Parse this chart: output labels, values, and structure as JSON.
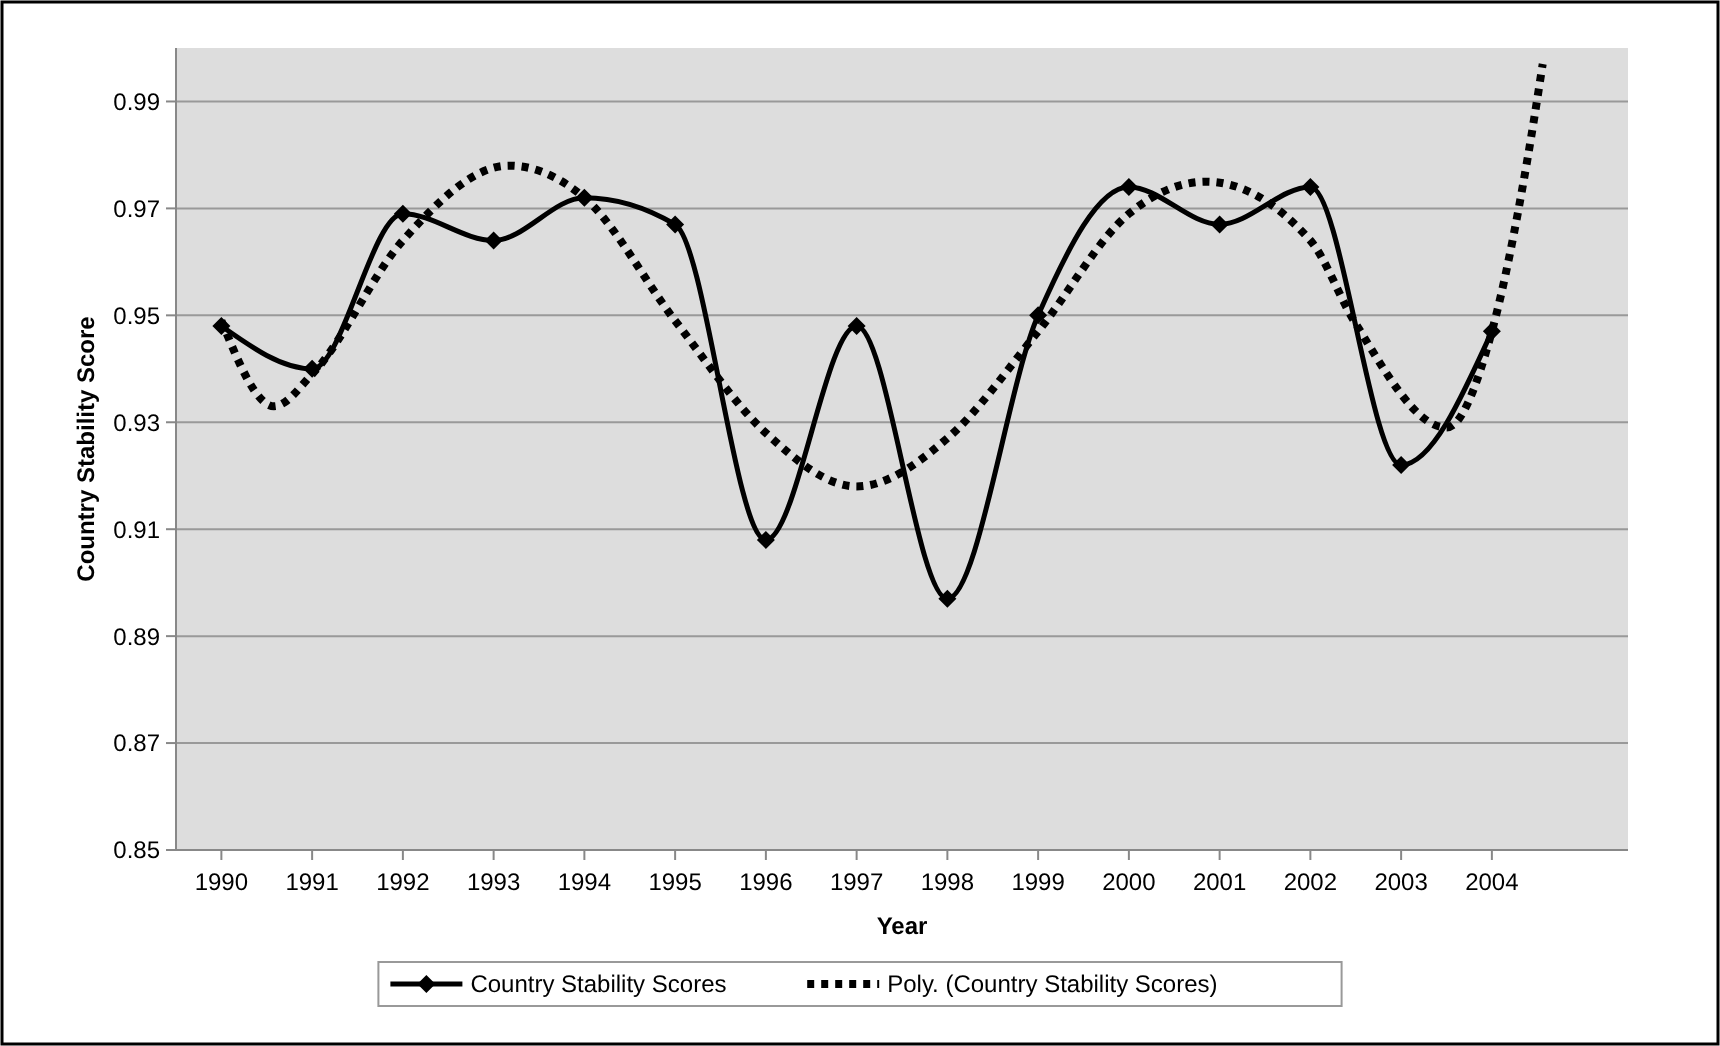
{
  "chart_data": {
    "type": "line",
    "xlabel": "Year",
    "ylabel": "Country Stability Score",
    "x": [
      1990,
      1991,
      1992,
      1993,
      1994,
      1995,
      1996,
      1997,
      1998,
      1999,
      2000,
      2001,
      2002,
      2003,
      2004
    ],
    "series": [
      {
        "name": "Country Stability Scores",
        "color": "#000000",
        "marker": "diamond",
        "line_style": "solid",
        "values": [
          0.948,
          0.94,
          0.969,
          0.964,
          0.972,
          0.967,
          0.908,
          0.948,
          0.897,
          0.95,
          0.974,
          0.967,
          0.974,
          0.922,
          0.947
        ]
      },
      {
        "name": "Poly. (Country Stability Scores)",
        "color": "#000000",
        "marker": "none",
        "line_style": "dotted",
        "x": [
          1990,
          1990.58,
          1991,
          1992,
          1993.17,
          1994,
          1995,
          1996,
          1997,
          1998,
          1999,
          2000,
          2000.85,
          2002,
          2002.48,
          2003.5,
          2004,
          2004.39,
          2004.56
        ],
        "values": [
          0.949,
          0.933,
          0.939,
          0.964,
          0.978,
          0.972,
          0.949,
          0.928,
          0.918,
          0.927,
          0.947,
          0.969,
          0.975,
          0.964,
          0.949,
          0.929,
          0.947,
          0.979,
          0.997
        ]
      }
    ],
    "xlim": [
      1989.5,
      2005.5
    ],
    "xticks": [
      {
        "value": 1990,
        "label": "1990"
      },
      {
        "value": 1991,
        "label": "1991"
      },
      {
        "value": 1992,
        "label": "1992"
      },
      {
        "value": 1993,
        "label": "1993"
      },
      {
        "value": 1994,
        "label": "1994"
      },
      {
        "value": 1995,
        "label": "1995"
      },
      {
        "value": 1996,
        "label": "1996"
      },
      {
        "value": 1997,
        "label": "1997"
      },
      {
        "value": 1998,
        "label": "1998"
      },
      {
        "value": 1999,
        "label": "1999"
      },
      {
        "value": 2000,
        "label": "2000"
      },
      {
        "value": 2001,
        "label": "2001"
      },
      {
        "value": 2002,
        "label": "2002"
      },
      {
        "value": 2003,
        "label": "2003"
      },
      {
        "value": 2004,
        "label": "2004"
      }
    ],
    "ylim": [
      0.85,
      1.0
    ],
    "yticks": [
      0.85,
      0.87,
      0.89,
      0.91,
      0.93,
      0.95,
      0.97,
      0.99
    ],
    "grid": "y",
    "legend": "bottom"
  }
}
